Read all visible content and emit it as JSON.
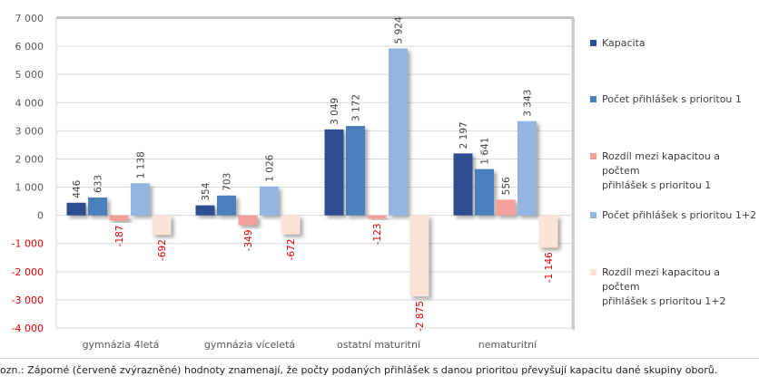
{
  "chart_data": {
    "type": "bar",
    "title": "",
    "xlabel": "",
    "ylabel": "",
    "ylim": [
      -4000,
      7000
    ],
    "yticks": [
      7000,
      6000,
      5000,
      4000,
      3000,
      2000,
      1000,
      0,
      -1000,
      -2000,
      -3000,
      -4000
    ],
    "ytick_labels": [
      "7 000",
      "6 000",
      "5 000",
      "4 000",
      "3 000",
      "2 000",
      "1 000",
      "0",
      "-1 000",
      "-2 000",
      "-3 000",
      "-4 000"
    ],
    "grid": true,
    "legend_position": "right",
    "categories": [
      "gymnázia 4letá",
      "gymnázia víceletá",
      "ostatní maturitní",
      "nematuritní"
    ],
    "series": [
      {
        "name": "Kapacita",
        "color": "#2e4d91",
        "values": [
          446,
          354,
          3049,
          2197
        ],
        "labels": [
          "446",
          "354",
          "3 049",
          "2 197"
        ]
      },
      {
        "name": "Počet přihlášek s prioritou 1",
        "color": "#4a7fba",
        "values": [
          633,
          703,
          3172,
          1641
        ],
        "labels": [
          "633",
          "703",
          "3 172",
          "1 641"
        ]
      },
      {
        "name": "Rozdíl mezi kapacitou a počtem přihlášek s prioritou 1",
        "color": "#f4a09a",
        "values": [
          -187,
          -349,
          -123,
          556
        ],
        "labels": [
          "-187",
          "-349",
          "-123",
          "556"
        ]
      },
      {
        "name": "Počet přihlášek s prioritou 1+2",
        "color": "#93b5df",
        "values": [
          1138,
          1026,
          5924,
          3343
        ],
        "labels": [
          "1 138",
          "1 026",
          "5 924",
          "3 343"
        ]
      },
      {
        "name": "Rozdíl mezi kapacitou a počtem přihlášek s prioritou 1+2",
        "color": "#fbe3d7",
        "values": [
          -692,
          -672,
          -2875,
          -1146
        ],
        "labels": [
          "-692",
          "-672",
          "-2 875",
          "-1 146"
        ]
      }
    ],
    "negative_label_color": "#e00000"
  },
  "legend": {
    "items": [
      {
        "line1": "Kapacita",
        "line2": ""
      },
      {
        "line1": "Počet přihlášek s prioritou 1",
        "line2": ""
      },
      {
        "line1": "Rozdíl mezi kapacitou a počtem",
        "line2": "přihlášek s prioritou 1"
      },
      {
        "line1": "Počet přihlášek s prioritou 1+2",
        "line2": ""
      },
      {
        "line1": "Rozdíl mezi kapacitou a počtem",
        "line2": "přihlášek s prioritou 1+2"
      }
    ]
  },
  "footnote": "ozn.: Záporné (červeně zvýrazněné) hodnoty znamenají, že počty podaných přihlášek s danou prioritou převyšují kapacitu dané skupiny oborů."
}
